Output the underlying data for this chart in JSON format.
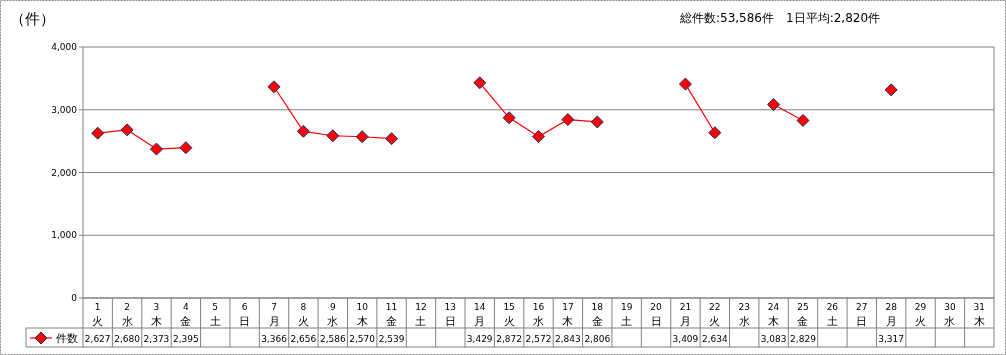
{
  "chart_data": {
    "type": "line",
    "title": "総件数:53,586件　1日平均:2,820件",
    "ylabel": "（件）",
    "categories": [
      "1 火",
      "2 水",
      "3 木",
      "4 金",
      "5 土",
      "6 日",
      "7 月",
      "8 火",
      "9 水",
      "10 木",
      "11 金",
      "12 土",
      "13 日",
      "14 月",
      "15 火",
      "16 水",
      "17 木",
      "18 金",
      "19 土",
      "20 日",
      "21 月",
      "22 火",
      "23 水",
      "24 木",
      "25 金",
      "26 土",
      "27 日",
      "28 月",
      "29 火",
      "30 水",
      "31 木"
    ],
    "series": [
      {
        "name": "件数",
        "color": "#ff0000",
        "values": [
          2627,
          2680,
          2373,
          2395,
          null,
          null,
          3366,
          2656,
          2586,
          2570,
          2539,
          null,
          null,
          3429,
          2872,
          2572,
          2843,
          2806,
          null,
          null,
          3409,
          2634,
          null,
          3083,
          2829,
          null,
          null,
          3317,
          null,
          null,
          null
        ],
        "value_labels": [
          "2,627",
          "2,680",
          "2,373",
          "2,395",
          null,
          null,
          "3,366",
          "2,656",
          "2,586",
          "2,570",
          "2,539",
          null,
          null,
          "3,429",
          "2,872",
          "2,572",
          "2,843",
          "2,806",
          null,
          null,
          "3,409",
          "2,634",
          null,
          "3,083",
          "2,829",
          null,
          null,
          "3,317",
          null,
          null,
          null
        ]
      }
    ],
    "ylim": [
      0,
      4000
    ],
    "yticks": [
      {
        "value": 0,
        "label": "0"
      },
      {
        "value": 1000,
        "label": "1,000"
      },
      {
        "value": 2000,
        "label": "2,000"
      },
      {
        "value": 3000,
        "label": "3,000"
      },
      {
        "value": 4000,
        "label": "4,000"
      }
    ],
    "grid": "y",
    "legend": "bottom",
    "marker": "diamond",
    "line_style": "solid"
  }
}
